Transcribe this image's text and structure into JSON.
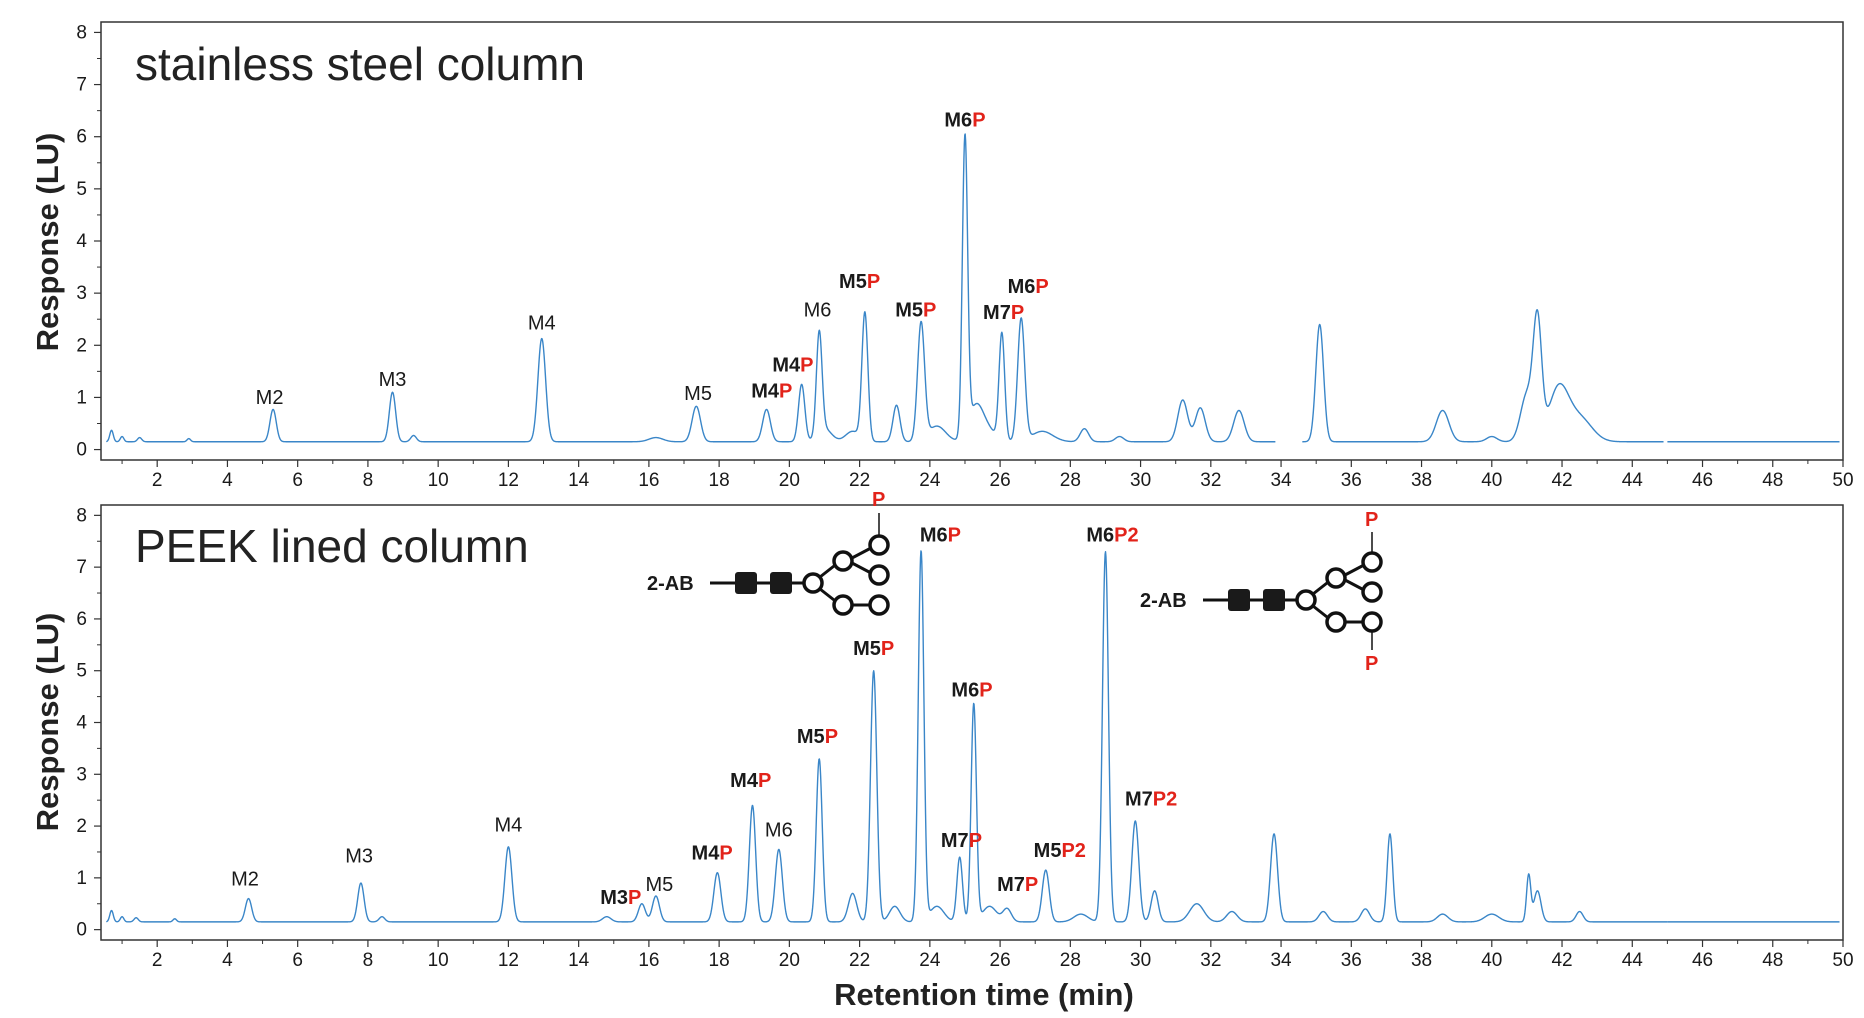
{
  "chart_data": [
    {
      "type": "line",
      "title": "stainless steel column",
      "xlabel": "Retention time (min)",
      "ylabel": "Response (LU)",
      "xlim": [
        0.4,
        50
      ],
      "ylim": [
        -0.2,
        8.2
      ],
      "xticks": [
        2,
        4,
        6,
        8,
        10,
        12,
        14,
        16,
        18,
        20,
        22,
        24,
        26,
        28,
        30,
        32,
        34,
        36,
        38,
        40,
        42,
        44,
        46,
        48,
        50
      ],
      "yticks": [
        0,
        1,
        2,
        3,
        4,
        5,
        6,
        7,
        8
      ],
      "series": [
        {
          "name": "stainless steel",
          "color": "#3a86c8",
          "baseline": 0.15,
          "peaks": [
            {
              "rt": 0.7,
              "h": 0.22,
              "w": 0.05
            },
            {
              "rt": 1.0,
              "h": 0.1,
              "w": 0.05
            },
            {
              "rt": 1.5,
              "h": 0.08,
              "w": 0.06
            },
            {
              "rt": 2.9,
              "h": 0.06,
              "w": 0.05
            },
            {
              "rt": 5.3,
              "h": 0.62,
              "w": 0.09
            },
            {
              "rt": 8.7,
              "h": 0.95,
              "w": 0.09
            },
            {
              "rt": 9.3,
              "h": 0.12,
              "w": 0.08
            },
            {
              "rt": 12.95,
              "h": 1.98,
              "w": 0.11
            },
            {
              "rt": 16.2,
              "h": 0.08,
              "w": 0.2
            },
            {
              "rt": 17.35,
              "h": 0.68,
              "w": 0.12
            },
            {
              "rt": 19.35,
              "h": 0.62,
              "w": 0.11
            },
            {
              "rt": 20.35,
              "h": 1.1,
              "w": 0.09
            },
            {
              "rt": 20.85,
              "h": 1.95,
              "w": 0.08
            },
            {
              "rt": 21.0,
              "h": 0.25,
              "w": 0.2
            },
            {
              "rt": 21.8,
              "h": 0.2,
              "w": 0.2
            },
            {
              "rt": 22.15,
              "h": 2.45,
              "w": 0.085
            },
            {
              "rt": 23.05,
              "h": 0.7,
              "w": 0.1
            },
            {
              "rt": 23.75,
              "h": 2.25,
              "w": 0.1
            },
            {
              "rt": 24.2,
              "h": 0.3,
              "w": 0.25
            },
            {
              "rt": 25.0,
              "h": 5.7,
              "w": 0.075
            },
            {
              "rt": 25.3,
              "h": 0.6,
              "w": 0.2
            },
            {
              "rt": 25.6,
              "h": 0.25,
              "w": 0.25
            },
            {
              "rt": 26.05,
              "h": 2.05,
              "w": 0.08
            },
            {
              "rt": 26.6,
              "h": 2.35,
              "w": 0.1
            },
            {
              "rt": 27.2,
              "h": 0.2,
              "w": 0.3
            },
            {
              "rt": 28.4,
              "h": 0.25,
              "w": 0.12
            },
            {
              "rt": 29.4,
              "h": 0.1,
              "w": 0.12
            },
            {
              "rt": 31.2,
              "h": 0.8,
              "w": 0.14
            },
            {
              "rt": 31.7,
              "h": 0.65,
              "w": 0.14
            },
            {
              "rt": 32.8,
              "h": 0.6,
              "w": 0.15
            },
            {
              "rt": 35.1,
              "h": 2.25,
              "w": 0.11
            },
            {
              "rt": 38.6,
              "h": 0.6,
              "w": 0.18
            },
            {
              "rt": 40.0,
              "h": 0.1,
              "w": 0.15
            },
            {
              "rt": 41.0,
              "h": 0.9,
              "w": 0.18
            },
            {
              "rt": 41.3,
              "h": 2.2,
              "w": 0.12
            },
            {
              "rt": 41.9,
              "h": 1.0,
              "w": 0.28
            },
            {
              "rt": 42.5,
              "h": 0.45,
              "w": 0.35
            }
          ],
          "gaps": [
            [
              33.85,
              34.6
            ],
            [
              44.9,
              45.0
            ]
          ]
        }
      ],
      "annotations": [
        {
          "x": 5.2,
          "y": 0.87,
          "text": "M2"
        },
        {
          "x": 8.7,
          "y": 1.22,
          "text": "M3"
        },
        {
          "x": 12.95,
          "y": 2.3,
          "text": "M4"
        },
        {
          "x": 17.4,
          "y": 0.95,
          "text": "M5"
        },
        {
          "x": 19.5,
          "y": 1.0,
          "text": "M4",
          "red": "P"
        },
        {
          "x": 20.1,
          "y": 1.5,
          "text": "M4",
          "red": "P"
        },
        {
          "x": 20.8,
          "y": 2.55,
          "text": "M6"
        },
        {
          "x": 22.0,
          "y": 3.1,
          "text": "M5",
          "red": "P"
        },
        {
          "x": 23.6,
          "y": 2.55,
          "text": "M5",
          "red": "P"
        },
        {
          "x": 25.0,
          "y": 6.2,
          "text": "M6",
          "red": "P"
        },
        {
          "x": 26.1,
          "y": 2.5,
          "text": "M7",
          "red": "P"
        },
        {
          "x": 26.8,
          "y": 3.0,
          "text": "M6",
          "red": "P"
        }
      ]
    },
    {
      "type": "line",
      "title": "PEEK lined column",
      "xlabel": "Retention time (min)",
      "ylabel": "Response (LU)",
      "xlim": [
        0.4,
        50
      ],
      "ylim": [
        -0.2,
        8.2
      ],
      "xticks": [
        2,
        4,
        6,
        8,
        10,
        12,
        14,
        16,
        18,
        20,
        22,
        24,
        26,
        28,
        30,
        32,
        34,
        36,
        38,
        40,
        42,
        44,
        46,
        48,
        50
      ],
      "yticks": [
        0,
        1,
        2,
        3,
        4,
        5,
        6,
        7,
        8
      ],
      "series": [
        {
          "name": "PEEK lined",
          "color": "#3a86c8",
          "baseline": 0.15,
          "peaks": [
            {
              "rt": 0.7,
              "h": 0.22,
              "w": 0.05
            },
            {
              "rt": 1.0,
              "h": 0.1,
              "w": 0.05
            },
            {
              "rt": 1.4,
              "h": 0.08,
              "w": 0.06
            },
            {
              "rt": 2.5,
              "h": 0.06,
              "w": 0.05
            },
            {
              "rt": 4.6,
              "h": 0.45,
              "w": 0.09
            },
            {
              "rt": 7.8,
              "h": 0.75,
              "w": 0.09
            },
            {
              "rt": 8.4,
              "h": 0.1,
              "w": 0.08
            },
            {
              "rt": 12.0,
              "h": 1.45,
              "w": 0.1
            },
            {
              "rt": 14.8,
              "h": 0.1,
              "w": 0.12
            },
            {
              "rt": 15.8,
              "h": 0.35,
              "w": 0.1
            },
            {
              "rt": 16.2,
              "h": 0.5,
              "w": 0.1
            },
            {
              "rt": 17.95,
              "h": 0.95,
              "w": 0.1
            },
            {
              "rt": 18.95,
              "h": 2.25,
              "w": 0.09
            },
            {
              "rt": 19.7,
              "h": 1.4,
              "w": 0.1
            },
            {
              "rt": 20.85,
              "h": 3.15,
              "w": 0.085
            },
            {
              "rt": 21.8,
              "h": 0.55,
              "w": 0.12
            },
            {
              "rt": 22.4,
              "h": 4.85,
              "w": 0.09
            },
            {
              "rt": 23.0,
              "h": 0.3,
              "w": 0.15
            },
            {
              "rt": 23.75,
              "h": 7.15,
              "w": 0.08
            },
            {
              "rt": 24.2,
              "h": 0.3,
              "w": 0.2
            },
            {
              "rt": 24.85,
              "h": 1.25,
              "w": 0.08
            },
            {
              "rt": 25.25,
              "h": 4.2,
              "w": 0.075
            },
            {
              "rt": 25.7,
              "h": 0.3,
              "w": 0.2
            },
            {
              "rt": 26.2,
              "h": 0.25,
              "w": 0.12
            },
            {
              "rt": 27.3,
              "h": 1.0,
              "w": 0.1
            },
            {
              "rt": 28.3,
              "h": 0.15,
              "w": 0.2
            },
            {
              "rt": 29.0,
              "h": 7.15,
              "w": 0.085
            },
            {
              "rt": 29.85,
              "h": 1.95,
              "w": 0.1
            },
            {
              "rt": 30.4,
              "h": 0.6,
              "w": 0.1
            },
            {
              "rt": 31.6,
              "h": 0.35,
              "w": 0.2
            },
            {
              "rt": 32.6,
              "h": 0.2,
              "w": 0.15
            },
            {
              "rt": 33.8,
              "h": 1.7,
              "w": 0.1
            },
            {
              "rt": 35.2,
              "h": 0.2,
              "w": 0.12
            },
            {
              "rt": 36.4,
              "h": 0.25,
              "w": 0.12
            },
            {
              "rt": 37.1,
              "h": 1.7,
              "w": 0.08
            },
            {
              "rt": 38.6,
              "h": 0.15,
              "w": 0.15
            },
            {
              "rt": 40.0,
              "h": 0.15,
              "w": 0.2
            },
            {
              "rt": 41.05,
              "h": 0.9,
              "w": 0.06
            },
            {
              "rt": 41.3,
              "h": 0.6,
              "w": 0.1
            },
            {
              "rt": 42.5,
              "h": 0.2,
              "w": 0.1
            }
          ],
          "gaps": []
        }
      ],
      "annotations": [
        {
          "x": 4.5,
          "y": 0.85,
          "text": "M2"
        },
        {
          "x": 7.75,
          "y": 1.3,
          "text": "M3"
        },
        {
          "x": 12.0,
          "y": 1.9,
          "text": "M4"
        },
        {
          "x": 15.2,
          "y": 0.5,
          "text": "M3",
          "red": "P"
        },
        {
          "x": 16.3,
          "y": 0.75,
          "text": "M5"
        },
        {
          "x": 17.8,
          "y": 1.35,
          "text": "M4",
          "red": "P"
        },
        {
          "x": 18.9,
          "y": 2.75,
          "text": "M4",
          "red": "P"
        },
        {
          "x": 19.7,
          "y": 1.8,
          "text": "M6"
        },
        {
          "x": 20.8,
          "y": 3.6,
          "text": "M5",
          "red": "P"
        },
        {
          "x": 22.4,
          "y": 5.3,
          "text": "M5",
          "red": "P"
        },
        {
          "x": 24.3,
          "y": 7.5,
          "text": "M6",
          "red": "P"
        },
        {
          "x": 25.2,
          "y": 4.5,
          "text": "M6",
          "red": "P"
        },
        {
          "x": 24.9,
          "y": 1.6,
          "text": "M7",
          "red": "P"
        },
        {
          "x": 26.5,
          "y": 0.75,
          "text": "M7",
          "red": "P"
        },
        {
          "x": 27.7,
          "y": 1.4,
          "text": "M5",
          "red": "P2"
        },
        {
          "x": 29.2,
          "y": 7.5,
          "text": "M6",
          "red": "P2"
        },
        {
          "x": 30.3,
          "y": 2.4,
          "text": "M7",
          "red": "P2"
        }
      ],
      "glycans": [
        {
          "label": "2-AB",
          "phospho": "P",
          "p_count": 1
        },
        {
          "label": "2-AB",
          "phospho": "P",
          "p_count": 2
        }
      ]
    }
  ]
}
